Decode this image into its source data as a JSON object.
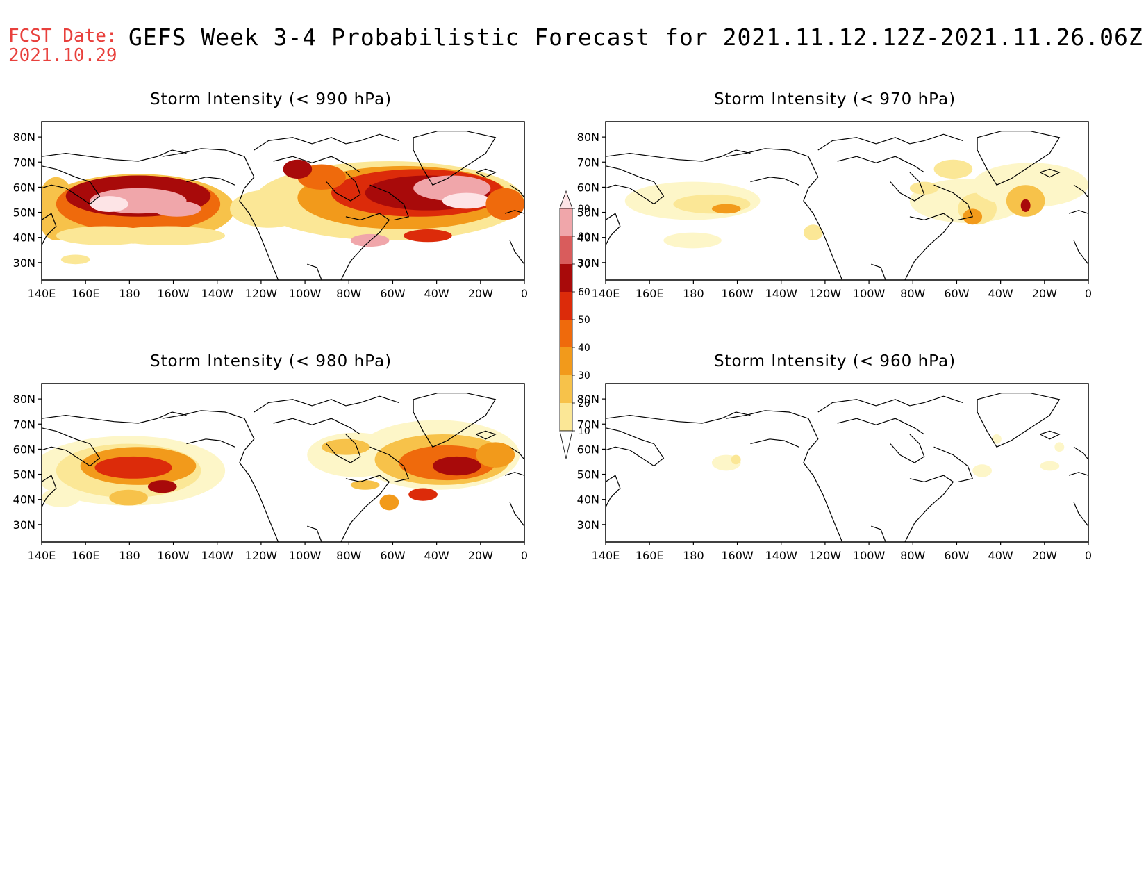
{
  "header": {
    "fcst_label": "FCST Date:",
    "fcst_date": "2021.10.29",
    "title": "GEFS Week 3-4 Probabilistic Forecast for 2021.11.12.12Z-2021.11.26.06Z"
  },
  "axes": {
    "lat_ticks": [
      "80N",
      "70N",
      "60N",
      "50N",
      "40N",
      "30N"
    ],
    "lon_ticks": [
      "140E",
      "160E",
      "180",
      "160W",
      "140W",
      "120W",
      "100W",
      "80W",
      "60W",
      "40W",
      "20W",
      "0"
    ]
  },
  "panels": [
    {
      "title": "Storm Intensity (< 990 hPa)",
      "intensity": "high"
    },
    {
      "title": "Storm Intensity (< 970 hPa)",
      "intensity": "low"
    },
    {
      "title": "Storm Intensity (< 980 hPa)",
      "intensity": "medium"
    },
    {
      "title": "Storm Intensity (< 960 hPa)",
      "intensity": "minimal"
    }
  ],
  "colorbar": {
    "levels": [
      "10",
      "20",
      "30",
      "40",
      "50",
      "60",
      "70",
      "80",
      "90"
    ],
    "colors": [
      "#fdf6c8",
      "#fbe796",
      "#f7c24a",
      "#f29a1b",
      "#ef6a0c",
      "#dc2b0a",
      "#a80a0a",
      "#d95c5c",
      "#f0a6aa",
      "#fde4e6"
    ]
  }
}
